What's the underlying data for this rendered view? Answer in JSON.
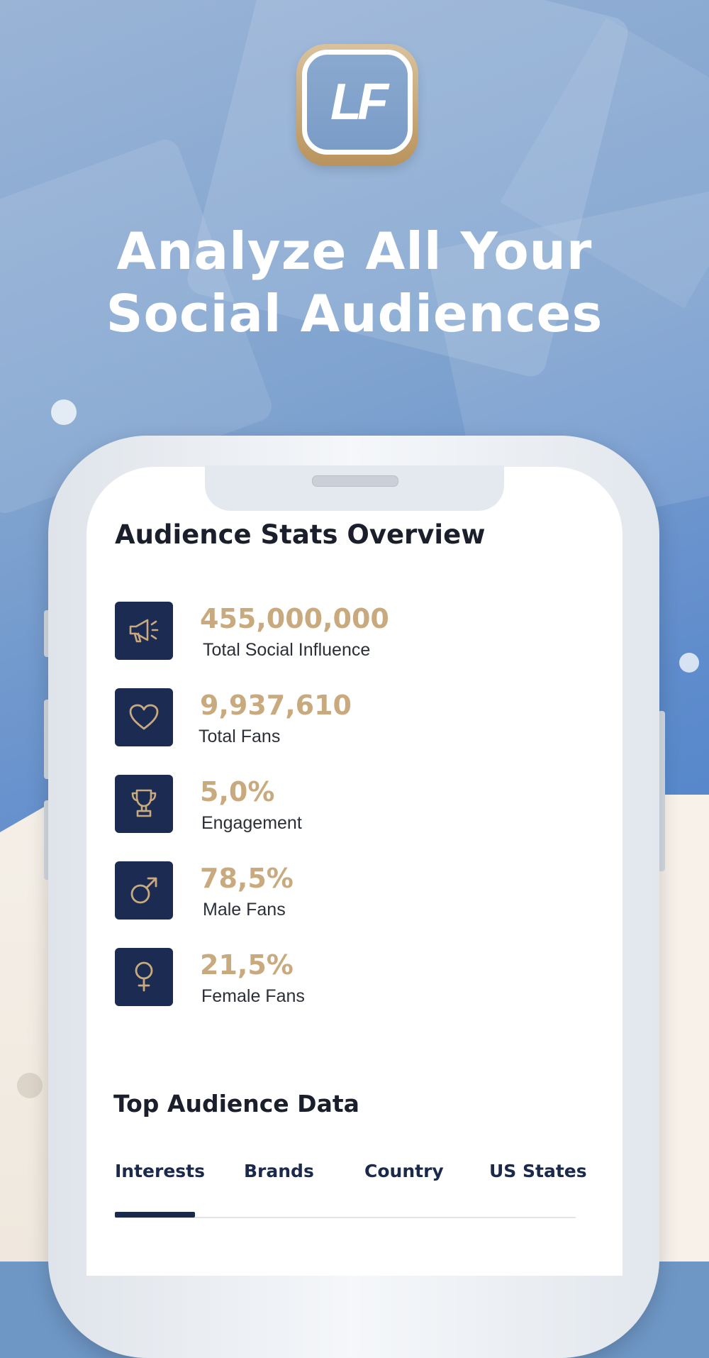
{
  "brand": {
    "logo_text": "LF",
    "accent_gold": "#c8aa7e",
    "navy": "#1c2b52"
  },
  "headline": {
    "line1": "Analyze All Your",
    "line2": "Social Audiences"
  },
  "overview": {
    "title": "Audience Stats Overview",
    "stats": [
      {
        "icon": "megaphone-icon",
        "value": "455,000,000",
        "label": "Total Social Influence"
      },
      {
        "icon": "heart-icon",
        "value": "9,937,610",
        "label": "Total Fans"
      },
      {
        "icon": "trophy-icon",
        "value": "5,0%",
        "label": "Engagement"
      },
      {
        "icon": "male-symbol-icon",
        "value": "78,5%",
        "label": "Male Fans"
      },
      {
        "icon": "female-symbol-icon",
        "value": "21,5%",
        "label": "Female Fans"
      }
    ]
  },
  "top_audience": {
    "title": "Top Audience Data",
    "tabs": [
      "Interests",
      "Brands",
      "Country",
      "US States"
    ],
    "active_tab": "Interests"
  }
}
